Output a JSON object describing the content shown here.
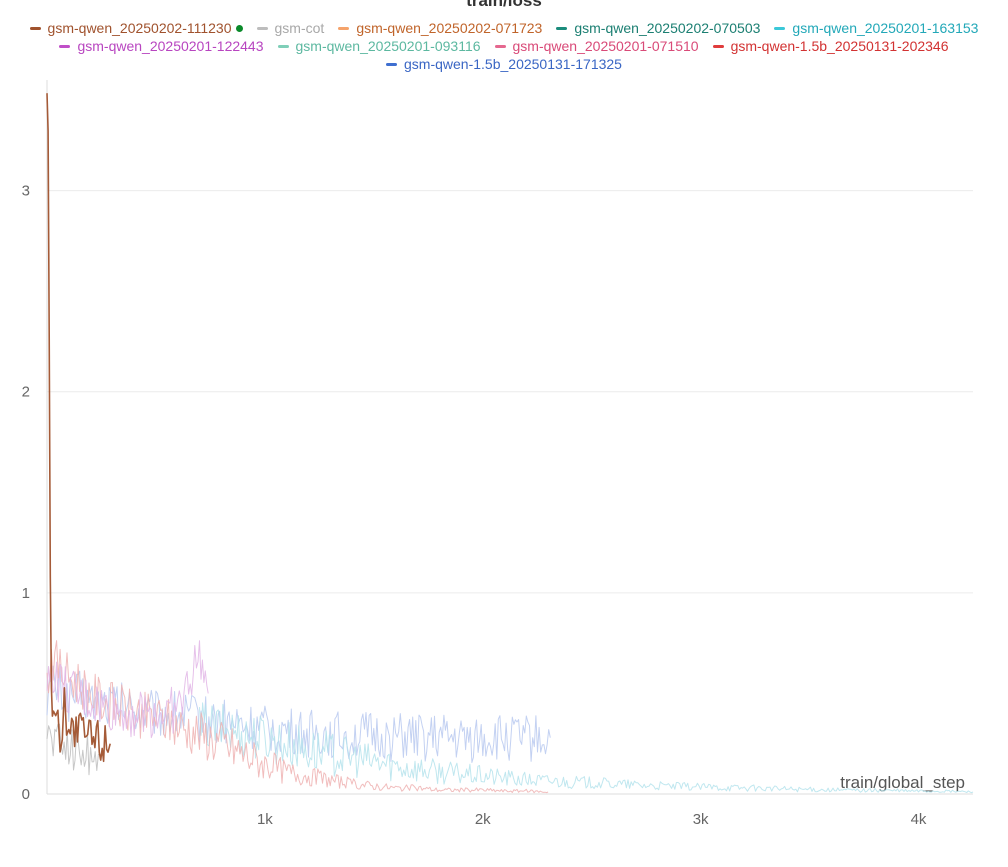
{
  "chart_data": {
    "type": "line",
    "title": "train/loss",
    "xlabel": "train/global_step",
    "ylabel": "",
    "xlim": [
      0,
      4250
    ],
    "ylim": [
      0,
      3.55
    ],
    "x_ticks": [
      {
        "value": 1000,
        "label": "1k"
      },
      {
        "value": 2000,
        "label": "2k"
      },
      {
        "value": 3000,
        "label": "3k"
      },
      {
        "value": 4000,
        "label": "4k"
      }
    ],
    "y_ticks": [
      {
        "value": 0,
        "label": "0"
      },
      {
        "value": 1,
        "label": "1"
      },
      {
        "value": 2,
        "label": "2"
      },
      {
        "value": 3,
        "label": "3"
      }
    ],
    "grid": true,
    "legend_position": "top",
    "legend_rows": [
      [
        {
          "name": "gsm-qwen_20250202-111230",
          "color": "#a0522d",
          "text_color": "#a0522d",
          "active": true
        },
        {
          "name": "gsm-cot",
          "color": "#bdbdbd",
          "text_color": "#a8a8a8"
        },
        {
          "name": "gsm-qwen_20250202-071723",
          "color": "#f5a36b",
          "text_color": "#c0642a"
        },
        {
          "name": "gsm-qwen_20250202-070503",
          "color": "#1b8c7c",
          "text_color": "#1b7f72"
        },
        {
          "name": "gsm-qwen_20250201-163153",
          "color": "#3bc8d8",
          "text_color": "#22a8b8"
        }
      ],
      [
        {
          "name": "gsm-qwen_20250201-122443",
          "color": "#c04fc8",
          "text_color": "#b845c0"
        },
        {
          "name": "gsm-qwen_20250201-093116",
          "color": "#7fcfb8",
          "text_color": "#5cb8a0"
        },
        {
          "name": "gsm-qwen_20250201-071510",
          "color": "#e5688f",
          "text_color": "#d94a78"
        },
        {
          "name": "gsm-qwen-1.5b_20250131-202346",
          "color": "#e03c3c",
          "text_color": "#d23232"
        }
      ],
      [
        {
          "name": "gsm-qwen-1.5b_20250131-171325",
          "color": "#3f6fd0",
          "text_color": "#3a66c4"
        }
      ]
    ],
    "series": [
      {
        "name": "gsm-qwen-1.5b_20250131-171325",
        "color": "#b9c9f0",
        "x": [
          0,
          20,
          60,
          100,
          150,
          200,
          300,
          400,
          500,
          600,
          700,
          800,
          900,
          1000,
          1100,
          1200,
          1300,
          1400,
          1500,
          1600,
          1700,
          1800,
          1900,
          2000,
          2100,
          2200,
          2310
        ],
        "y": [
          0.5,
          0.55,
          0.52,
          0.48,
          0.5,
          0.46,
          0.45,
          0.42,
          0.4,
          0.4,
          0.38,
          0.36,
          0.34,
          0.32,
          0.31,
          0.3,
          0.3,
          0.29,
          0.29,
          0.28,
          0.28,
          0.28,
          0.27,
          0.28,
          0.28,
          0.28,
          0.28
        ]
      },
      {
        "name": "gsm-qwen_20250201-163153",
        "color": "#b5e3ec",
        "x": [
          700,
          800,
          900,
          1000,
          1200,
          1400,
          1600,
          1800,
          2000,
          2200,
          2400,
          2600,
          2800,
          3000,
          3200,
          3400,
          3600,
          3800,
          4000,
          4200,
          4250
        ],
        "y": [
          0.34,
          0.33,
          0.3,
          0.28,
          0.22,
          0.18,
          0.14,
          0.11,
          0.09,
          0.07,
          0.06,
          0.05,
          0.04,
          0.035,
          0.03,
          0.025,
          0.02,
          0.018,
          0.015,
          0.012,
          0.01
        ]
      },
      {
        "name": "gsm-qwen_20250201-071510",
        "color": "#efb1b1",
        "x": [
          0,
          20,
          60,
          100,
          150,
          200,
          300,
          400,
          500,
          600,
          700,
          800,
          900,
          1000,
          1100,
          1200,
          1300,
          1400,
          1500,
          1600,
          1700,
          1800,
          1900,
          2000,
          2100,
          2200,
          2300
        ],
        "y": [
          0.55,
          0.7,
          0.62,
          0.58,
          0.55,
          0.5,
          0.44,
          0.4,
          0.38,
          0.34,
          0.3,
          0.25,
          0.2,
          0.15,
          0.11,
          0.09,
          0.07,
          0.05,
          0.04,
          0.03,
          0.03,
          0.02,
          0.02,
          0.02,
          0.015,
          0.015,
          0.01
        ]
      },
      {
        "name": "gsm-qwen_20250201-122443",
        "color": "#e2b6e6",
        "x": [
          0,
          20,
          60,
          100,
          200,
          300,
          400,
          500,
          600,
          650,
          700,
          720,
          740
        ],
        "y": [
          0.5,
          0.62,
          0.55,
          0.5,
          0.46,
          0.42,
          0.4,
          0.4,
          0.42,
          0.55,
          0.7,
          0.6,
          0.5
        ]
      },
      {
        "name": "gsm-cot",
        "color": "#bdbdbd",
        "x": [
          0,
          50,
          100,
          150,
          200,
          250
        ],
        "y": [
          0.3,
          0.26,
          0.24,
          0.22,
          0.2,
          0.19
        ]
      },
      {
        "name": "gsm-qwen_20250202-111230",
        "color": "#a0522d",
        "x": [
          0,
          5,
          10,
          15,
          20,
          25,
          30,
          40,
          50,
          60,
          70,
          80,
          90,
          100,
          120,
          140,
          160,
          180,
          200,
          220,
          240,
          260,
          280,
          290
        ],
        "y": [
          3.55,
          3.3,
          2.2,
          1.1,
          0.6,
          0.45,
          0.4,
          0.35,
          0.33,
          0.32,
          0.32,
          0.62,
          0.34,
          0.32,
          0.31,
          0.3,
          0.3,
          0.29,
          0.28,
          0.28,
          0.27,
          0.26,
          0.26,
          0.25
        ]
      }
    ]
  }
}
